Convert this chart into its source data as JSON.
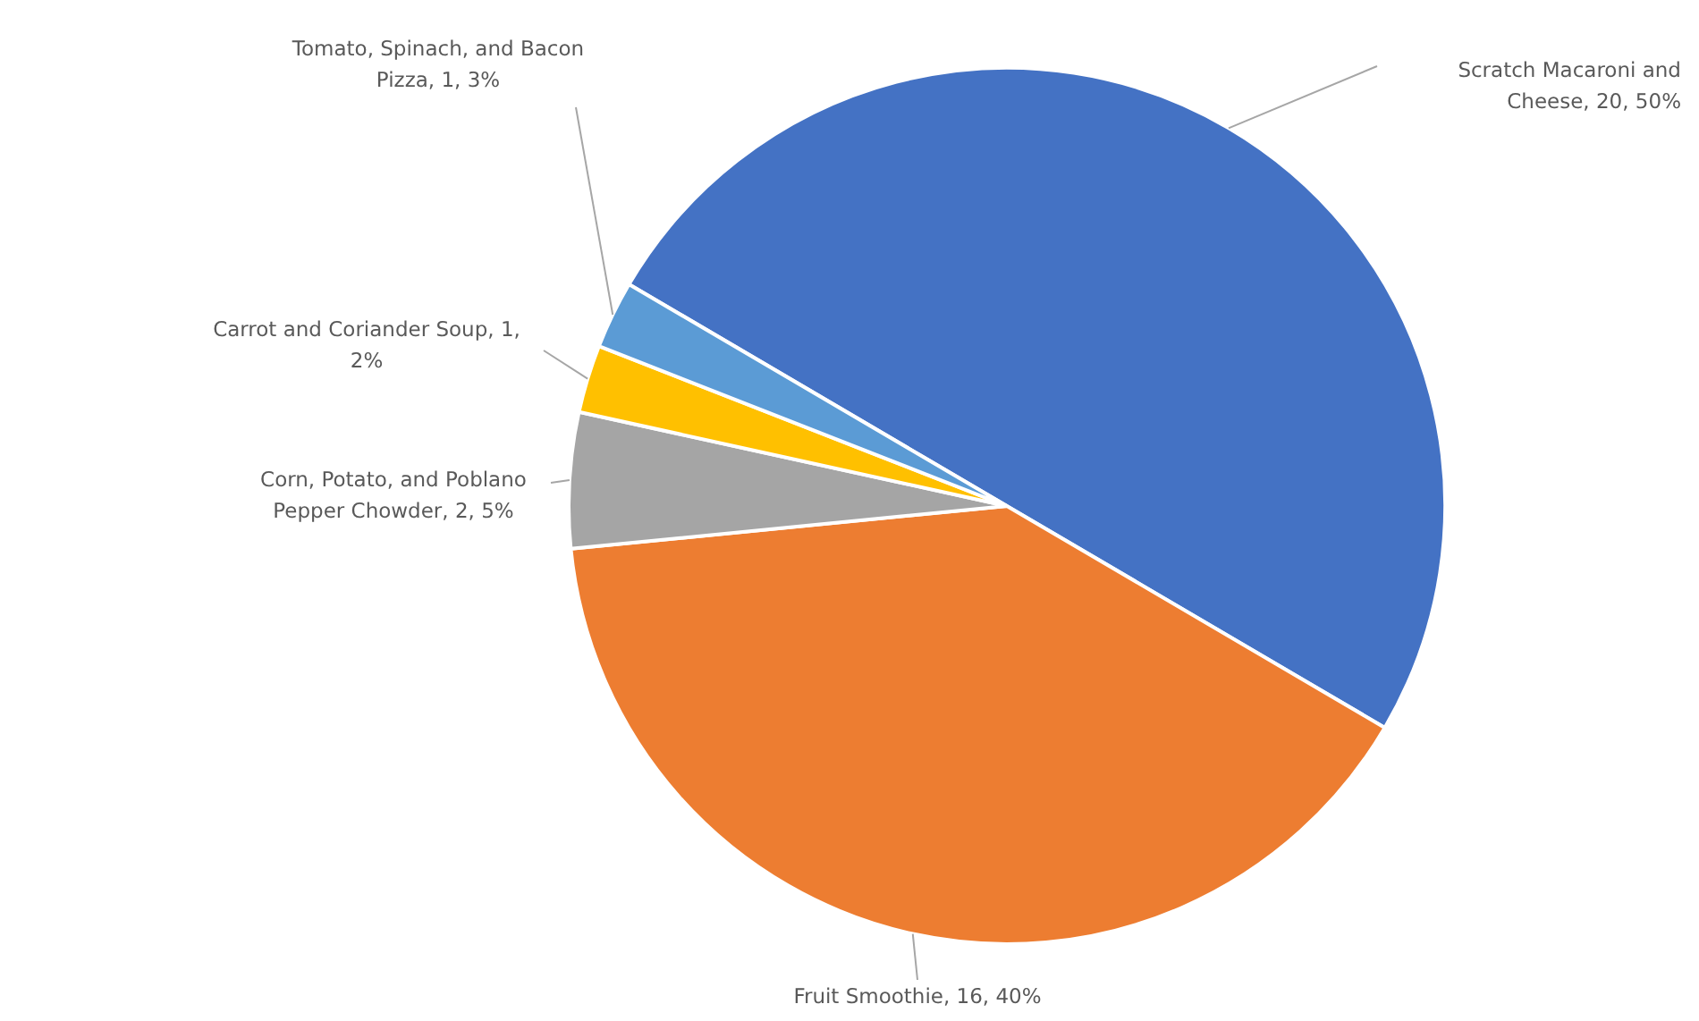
{
  "chart_data": {
    "type": "pie",
    "categories": [
      "Scratch Macaroni and Cheese",
      "Fruit Smoothie",
      "Corn, Potato, and Poblano Pepper Chowder",
      "Carrot and Coriander Soup",
      "Tomato, Spinach, and Bacon Pizza"
    ],
    "values": [
      20,
      16,
      2,
      1,
      1
    ],
    "colors": [
      "#4472c4",
      "#ed7d31",
      "#a5a5a5",
      "#ffc000",
      "#5b9bd5"
    ],
    "value_labels": [
      "20, 50%",
      "16, 40%",
      "2, 5%",
      "1, 2%",
      "1, 3%"
    ]
  }
}
